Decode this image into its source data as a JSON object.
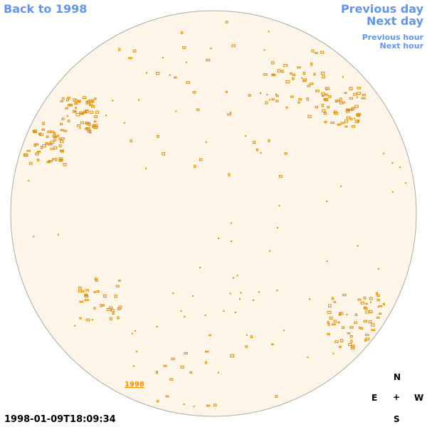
{
  "nav": {
    "back_year": "Back to 1998",
    "previous_day": "Previous day",
    "next_day": "Next day",
    "previous_hour": "Previous hour",
    "next_hour": "Next hour"
  },
  "disk": {
    "year_label": "1998"
  },
  "compass": {
    "north": "N",
    "east": "E",
    "center": "+",
    "west": "W",
    "south": "S"
  },
  "timestamp": "1998-01-09T18:09:34"
}
